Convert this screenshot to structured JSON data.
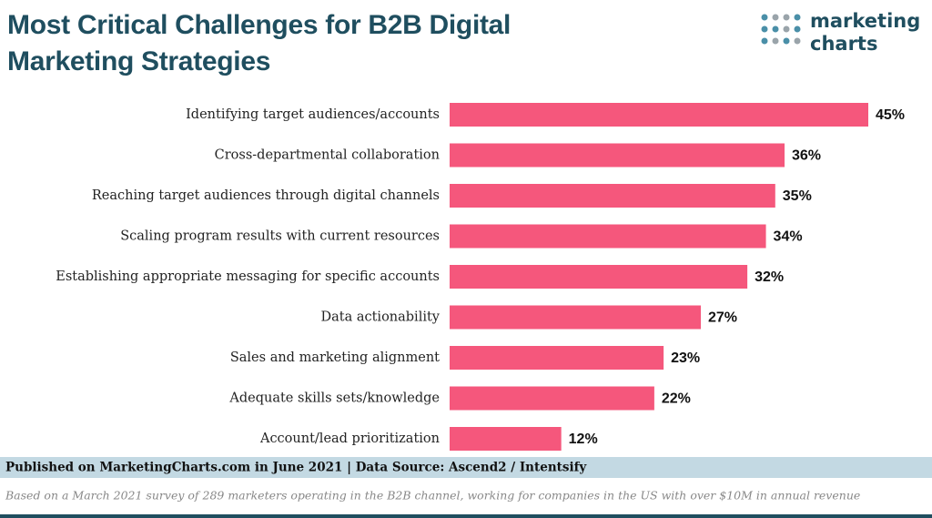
{
  "chart_data": {
    "type": "bar",
    "orientation": "horizontal",
    "title": "Most Critical Challenges for B2B Digital Marketing Strategies",
    "categories": [
      "Identifying target audiences/accounts",
      "Cross-departmental collaboration",
      "Reaching target audiences through digital channels",
      "Scaling program results with current resources",
      "Establishing appropriate messaging for specific accounts",
      "Data actionability",
      "Sales and marketing alignment",
      "Adequate skills sets/knowledge",
      "Account/lead prioritization"
    ],
    "values": [
      45,
      36,
      35,
      34,
      32,
      27,
      23,
      22,
      12
    ],
    "value_labels": [
      "45%",
      "36%",
      "35%",
      "34%",
      "32%",
      "27%",
      "23%",
      "22%",
      "12%"
    ],
    "color": "#f5577c",
    "source": "Published on MarketingCharts.com in June 2021 | Data Source: Ascend2 / Intentsify",
    "note": "Based on a March 2021 survey of 289 marketers operating in the B2B channel, working for companies in the US with over $10M in annual revenue"
  },
  "logo": {
    "line1": "marketing",
    "line2": "charts"
  }
}
